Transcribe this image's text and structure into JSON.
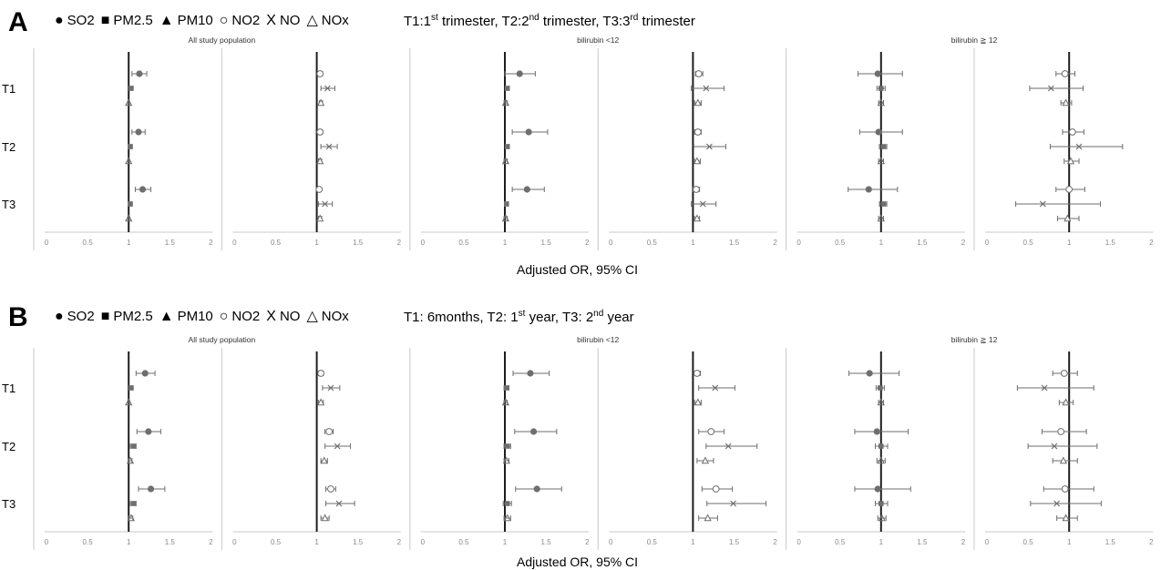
{
  "legend": {
    "items": [
      {
        "symbol": "●",
        "label": "SO2"
      },
      {
        "symbol": "■",
        "label": "PM2.5"
      },
      {
        "symbol": "▲",
        "label": "PM10"
      },
      {
        "symbol": "○",
        "label": "NO2"
      },
      {
        "symbol": "X",
        "label": "NO"
      },
      {
        "symbol": "△",
        "label": "NOx"
      }
    ]
  },
  "colors": {
    "marker": "#6e6e6e",
    "refline": "#1e1e1e",
    "axis": "#c8c8c8",
    "tick": "#888888",
    "divider": "#c8c8c8"
  },
  "chart_data": [
    {
      "panel": "A",
      "type": "forest",
      "note_parts": [
        "T1:1",
        "st",
        " trimester, T2:2",
        "nd",
        " trimester, T3:3",
        "rd",
        " trimester"
      ],
      "subgroup_titles": [
        "All study population",
        "bilirubin <12",
        "bilirubin ≧ 12"
      ],
      "row_labels": [
        "T1",
        "T2",
        "T3"
      ],
      "xticks": [
        "0",
        "0.5",
        "1",
        "1.5",
        "2"
      ],
      "xlim": [
        0,
        2
      ],
      "xlabel": "Adjusted OR, 95% CI",
      "reference": 1,
      "panels": [
        {
          "rows": [
            [
              {
                "p": "SO2",
                "or": 1.13,
                "lo": 1.04,
                "hi": 1.22
              },
              {
                "p": "PM2.5",
                "or": 1.03,
                "lo": 1.01,
                "hi": 1.05
              },
              {
                "p": "PM10",
                "or": 1.0,
                "lo": 0.99,
                "hi": 1.01
              }
            ],
            [
              {
                "p": "SO2",
                "or": 1.12,
                "lo": 1.04,
                "hi": 1.2
              },
              {
                "p": "PM2.5",
                "or": 1.02,
                "lo": 1.0,
                "hi": 1.04
              },
              {
                "p": "PM10",
                "or": 1.0,
                "lo": 0.99,
                "hi": 1.01
              }
            ],
            [
              {
                "p": "SO2",
                "or": 1.17,
                "lo": 1.08,
                "hi": 1.27
              },
              {
                "p": "PM2.5",
                "or": 1.02,
                "lo": 1.0,
                "hi": 1.04
              },
              {
                "p": "PM10",
                "or": 1.0,
                "lo": 0.99,
                "hi": 1.01
              }
            ]
          ]
        },
        {
          "rows": [
            [
              {
                "p": "NO2",
                "or": 1.04,
                "lo": 1.02,
                "hi": 1.07
              },
              {
                "p": "NO",
                "or": 1.13,
                "lo": 1.05,
                "hi": 1.22
              },
              {
                "p": "NOx",
                "or": 1.05,
                "lo": 1.03,
                "hi": 1.07
              }
            ],
            [
              {
                "p": "NO2",
                "or": 1.04,
                "lo": 1.02,
                "hi": 1.07
              },
              {
                "p": "NO",
                "or": 1.15,
                "lo": 1.05,
                "hi": 1.25
              },
              {
                "p": "NOx",
                "or": 1.04,
                "lo": 1.02,
                "hi": 1.06
              }
            ],
            [
              {
                "p": "NO2",
                "or": 1.03,
                "lo": 1.01,
                "hi": 1.05
              },
              {
                "p": "NO",
                "or": 1.1,
                "lo": 1.02,
                "hi": 1.19
              },
              {
                "p": "NOx",
                "or": 1.04,
                "lo": 1.02,
                "hi": 1.06
              }
            ]
          ]
        },
        {
          "rows": [
            [
              {
                "p": "SO2",
                "or": 1.18,
                "lo": 1.0,
                "hi": 1.37
              },
              {
                "p": "PM2.5",
                "or": 1.03,
                "lo": 1.01,
                "hi": 1.05
              },
              {
                "p": "PM10",
                "or": 1.01,
                "lo": 0.99,
                "hi": 1.03
              }
            ],
            [
              {
                "p": "SO2",
                "or": 1.29,
                "lo": 1.09,
                "hi": 1.52
              },
              {
                "p": "PM2.5",
                "or": 1.03,
                "lo": 1.01,
                "hi": 1.05
              },
              {
                "p": "PM10",
                "or": 1.01,
                "lo": 0.99,
                "hi": 1.03
              }
            ],
            [
              {
                "p": "SO2",
                "or": 1.27,
                "lo": 1.09,
                "hi": 1.48
              },
              {
                "p": "PM2.5",
                "or": 1.02,
                "lo": 1.0,
                "hi": 1.04
              },
              {
                "p": "PM10",
                "or": 1.01,
                "lo": 0.99,
                "hi": 1.03
              }
            ]
          ]
        },
        {
          "rows": [
            [
              {
                "p": "NO2",
                "or": 1.07,
                "lo": 1.03,
                "hi": 1.12
              },
              {
                "p": "NO",
                "or": 1.16,
                "lo": 0.98,
                "hi": 1.38
              },
              {
                "p": "NOx",
                "or": 1.06,
                "lo": 1.02,
                "hi": 1.1
              }
            ],
            [
              {
                "p": "NO2",
                "or": 1.06,
                "lo": 1.02,
                "hi": 1.1
              },
              {
                "p": "NO",
                "or": 1.2,
                "lo": 1.01,
                "hi": 1.4
              },
              {
                "p": "NOx",
                "or": 1.05,
                "lo": 1.02,
                "hi": 1.09
              }
            ],
            [
              {
                "p": "NO2",
                "or": 1.04,
                "lo": 1.0,
                "hi": 1.08
              },
              {
                "p": "NO",
                "or": 1.12,
                "lo": 0.98,
                "hi": 1.28
              },
              {
                "p": "NOx",
                "or": 1.05,
                "lo": 1.02,
                "hi": 1.08
              }
            ]
          ]
        },
        {
          "rows": [
            [
              {
                "p": "SO2",
                "or": 0.96,
                "lo": 0.72,
                "hi": 1.26
              },
              {
                "p": "PM2.5",
                "or": 1.0,
                "lo": 0.95,
                "hi": 1.05
              },
              {
                "p": "PM10",
                "or": 1.0,
                "lo": 0.97,
                "hi": 1.03
              }
            ],
            [
              {
                "p": "SO2",
                "or": 0.97,
                "lo": 0.74,
                "hi": 1.26
              },
              {
                "p": "PM2.5",
                "or": 1.03,
                "lo": 0.98,
                "hi": 1.07
              },
              {
                "p": "PM10",
                "or": 1.0,
                "lo": 0.97,
                "hi": 1.03
              }
            ],
            [
              {
                "p": "SO2",
                "or": 0.85,
                "lo": 0.6,
                "hi": 1.2
              },
              {
                "p": "PM2.5",
                "or": 1.03,
                "lo": 0.98,
                "hi": 1.07
              },
              {
                "p": "PM10",
                "or": 1.0,
                "lo": 0.97,
                "hi": 1.03
              }
            ]
          ]
        },
        {
          "rows": [
            [
              {
                "p": "NO2",
                "or": 0.95,
                "lo": 0.84,
                "hi": 1.07
              },
              {
                "p": "NO",
                "or": 0.78,
                "lo": 0.52,
                "hi": 1.17
              },
              {
                "p": "NOx",
                "or": 0.96,
                "lo": 0.9,
                "hi": 1.03
              }
            ],
            [
              {
                "p": "NO2",
                "or": 1.04,
                "lo": 0.92,
                "hi": 1.18
              },
              {
                "p": "NO",
                "or": 1.12,
                "lo": 0.77,
                "hi": 1.65
              },
              {
                "p": "NOx",
                "or": 1.02,
                "lo": 0.94,
                "hi": 1.12
              }
            ],
            [
              {
                "p": "NO2",
                "or": 1.0,
                "lo": 0.84,
                "hi": 1.19
              },
              {
                "p": "NO",
                "or": 0.68,
                "lo": 0.35,
                "hi": 1.38
              },
              {
                "p": "NOx",
                "or": 0.98,
                "lo": 0.86,
                "hi": 1.12
              }
            ]
          ]
        }
      ]
    },
    {
      "panel": "B",
      "type": "forest",
      "note_parts": [
        "T1: 6months, T2: 1",
        "st",
        " year, T3: 2",
        "nd",
        " year"
      ],
      "subgroup_titles": [
        "All study population",
        "bilirubin <12",
        "bilirubin ≧ 12"
      ],
      "row_labels": [
        "T1",
        "T2",
        "T3"
      ],
      "xticks": [
        "0",
        "0.5",
        "1",
        "1.5",
        "2"
      ],
      "xlim": [
        0,
        2
      ],
      "xlabel": "Adjusted OR, 95% CI",
      "reference": 1,
      "panels": [
        {
          "rows": [
            [
              {
                "p": "SO2",
                "or": 1.2,
                "lo": 1.09,
                "hi": 1.32
              },
              {
                "p": "PM2.5",
                "or": 1.03,
                "lo": 1.01,
                "hi": 1.05
              },
              {
                "p": "PM10",
                "or": 1.0,
                "lo": 0.99,
                "hi": 1.01
              }
            ],
            [
              {
                "p": "SO2",
                "or": 1.24,
                "lo": 1.1,
                "hi": 1.39
              },
              {
                "p": "PM2.5",
                "or": 1.06,
                "lo": 1.02,
                "hi": 1.09
              },
              {
                "p": "PM10",
                "or": 1.02,
                "lo": 1.0,
                "hi": 1.04
              }
            ],
            [
              {
                "p": "SO2",
                "or": 1.27,
                "lo": 1.12,
                "hi": 1.44
              },
              {
                "p": "PM2.5",
                "or": 1.06,
                "lo": 1.02,
                "hi": 1.09
              },
              {
                "p": "PM10",
                "or": 1.03,
                "lo": 1.0,
                "hi": 1.05
              }
            ]
          ]
        },
        {
          "rows": [
            [
              {
                "p": "NO2",
                "or": 1.05,
                "lo": 1.02,
                "hi": 1.08
              },
              {
                "p": "NO",
                "or": 1.17,
                "lo": 1.07,
                "hi": 1.28
              },
              {
                "p": "NOx",
                "or": 1.05,
                "lo": 1.02,
                "hi": 1.08
              }
            ],
            [
              {
                "p": "NO2",
                "or": 1.15,
                "lo": 1.1,
                "hi": 1.2
              },
              {
                "p": "NO",
                "or": 1.25,
                "lo": 1.1,
                "hi": 1.41
              },
              {
                "p": "NOx",
                "or": 1.09,
                "lo": 1.05,
                "hi": 1.13
              }
            ],
            [
              {
                "p": "NO2",
                "or": 1.17,
                "lo": 1.11,
                "hi": 1.23
              },
              {
                "p": "NO",
                "or": 1.27,
                "lo": 1.11,
                "hi": 1.46
              },
              {
                "p": "NOx",
                "or": 1.1,
                "lo": 1.05,
                "hi": 1.15
              }
            ]
          ]
        },
        {
          "rows": [
            [
              {
                "p": "SO2",
                "or": 1.31,
                "lo": 1.1,
                "hi": 1.54
              },
              {
                "p": "PM2.5",
                "or": 1.02,
                "lo": 0.99,
                "hi": 1.05
              },
              {
                "p": "PM10",
                "or": 1.01,
                "lo": 0.99,
                "hi": 1.03
              }
            ],
            [
              {
                "p": "SO2",
                "or": 1.35,
                "lo": 1.12,
                "hi": 1.63
              },
              {
                "p": "PM2.5",
                "or": 1.03,
                "lo": 0.99,
                "hi": 1.07
              },
              {
                "p": "PM10",
                "or": 1.02,
                "lo": 0.99,
                "hi": 1.05
              }
            ],
            [
              {
                "p": "SO2",
                "or": 1.39,
                "lo": 1.13,
                "hi": 1.69
              },
              {
                "p": "PM2.5",
                "or": 1.03,
                "lo": 0.98,
                "hi": 1.08
              },
              {
                "p": "PM10",
                "or": 1.03,
                "lo": 0.99,
                "hi": 1.07
              }
            ]
          ]
        },
        {
          "rows": [
            [
              {
                "p": "NO2",
                "or": 1.05,
                "lo": 1.01,
                "hi": 1.09
              },
              {
                "p": "NO",
                "or": 1.27,
                "lo": 1.07,
                "hi": 1.51
              },
              {
                "p": "NOx",
                "or": 1.06,
                "lo": 1.02,
                "hi": 1.1
              }
            ],
            [
              {
                "p": "NO2",
                "or": 1.22,
                "lo": 1.07,
                "hi": 1.38
              },
              {
                "p": "NO",
                "or": 1.43,
                "lo": 1.16,
                "hi": 1.78
              },
              {
                "p": "NOx",
                "or": 1.15,
                "lo": 1.05,
                "hi": 1.25
              }
            ],
            [
              {
                "p": "NO2",
                "or": 1.28,
                "lo": 1.11,
                "hi": 1.48
              },
              {
                "p": "NO",
                "or": 1.49,
                "lo": 1.17,
                "hi": 1.89
              },
              {
                "p": "NOx",
                "or": 1.18,
                "lo": 1.07,
                "hi": 1.3
              }
            ]
          ]
        },
        {
          "rows": [
            [
              {
                "p": "SO2",
                "or": 0.86,
                "lo": 0.61,
                "hi": 1.22
              },
              {
                "p": "PM2.5",
                "or": 0.99,
                "lo": 0.94,
                "hi": 1.04
              },
              {
                "p": "PM10",
                "or": 1.0,
                "lo": 0.97,
                "hi": 1.03
              }
            ],
            [
              {
                "p": "SO2",
                "or": 0.95,
                "lo": 0.68,
                "hi": 1.33
              },
              {
                "p": "PM2.5",
                "or": 1.0,
                "lo": 0.93,
                "hi": 1.08
              },
              {
                "p": "PM10",
                "or": 1.0,
                "lo": 0.95,
                "hi": 1.05
              }
            ],
            [
              {
                "p": "SO2",
                "or": 0.96,
                "lo": 0.68,
                "hi": 1.36
              },
              {
                "p": "PM2.5",
                "or": 1.0,
                "lo": 0.93,
                "hi": 1.08
              },
              {
                "p": "PM10",
                "or": 1.01,
                "lo": 0.96,
                "hi": 1.06
              }
            ]
          ]
        },
        {
          "rows": [
            [
              {
                "p": "NO2",
                "or": 0.94,
                "lo": 0.8,
                "hi": 1.1
              },
              {
                "p": "NO",
                "or": 0.7,
                "lo": 0.37,
                "hi": 1.3
              },
              {
                "p": "NOx",
                "or": 0.96,
                "lo": 0.88,
                "hi": 1.05
              }
            ],
            [
              {
                "p": "NO2",
                "or": 0.9,
                "lo": 0.67,
                "hi": 1.21
              },
              {
                "p": "NO",
                "or": 0.82,
                "lo": 0.5,
                "hi": 1.34
              },
              {
                "p": "NOx",
                "or": 0.93,
                "lo": 0.8,
                "hi": 1.1
              }
            ],
            [
              {
                "p": "NO2",
                "or": 0.95,
                "lo": 0.69,
                "hi": 1.3
              },
              {
                "p": "NO",
                "or": 0.85,
                "lo": 0.53,
                "hi": 1.39
              },
              {
                "p": "NOx",
                "or": 0.96,
                "lo": 0.85,
                "hi": 1.1
              }
            ]
          ]
        }
      ]
    }
  ]
}
